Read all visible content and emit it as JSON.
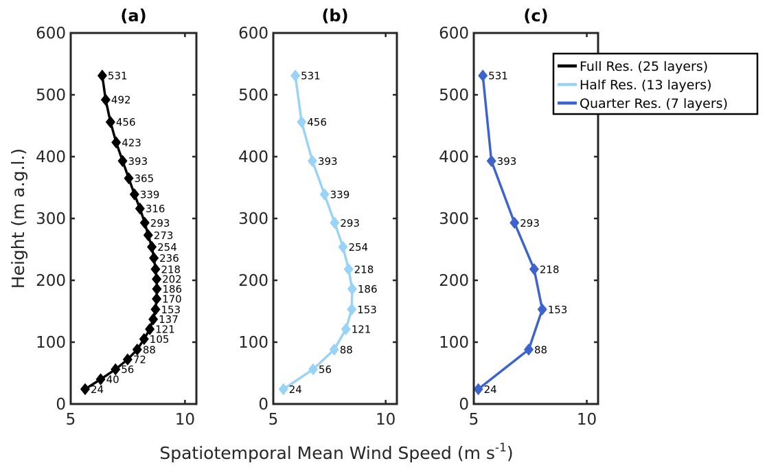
{
  "chart_data": {
    "type": "line",
    "xlabel": "Spatiotemporal Mean Wind Speed (m s",
    "xlabel_superscript": "-1",
    "xlabel_suffix": ")",
    "ylabel": "Height (m a.g.l.)",
    "xlim": [
      5,
      10.5
    ],
    "ylim": [
      0,
      600
    ],
    "x_ticks": [
      5,
      10
    ],
    "x_tick_labels": [
      "5",
      "10"
    ],
    "y_ticks": [
      0,
      100,
      200,
      300,
      400,
      500,
      600
    ],
    "y_tick_labels": [
      "0",
      "100",
      "200",
      "300",
      "400",
      "500",
      "600"
    ],
    "grid": false,
    "legend": {
      "placement": "top-right",
      "entries": [
        {
          "label": "Full Res. (25 layers)",
          "color": "#000000"
        },
        {
          "label": "Half Res. (13 layers)",
          "color": "#99d3f5"
        },
        {
          "label": "Quarter Res. (7 layers)",
          "color": "#3d64cd"
        }
      ]
    },
    "panels": [
      {
        "title": "(a)",
        "series_name": "Full Res. (25 layers)",
        "color": "#000000",
        "marker": "diamond",
        "y": [
          24,
          40,
          56,
          72,
          88,
          105,
          121,
          137,
          153,
          170,
          186,
          202,
          218,
          236,
          254,
          273,
          293,
          316,
          339,
          365,
          393,
          423,
          456,
          492,
          531
        ],
        "x": [
          5.63,
          6.31,
          6.96,
          7.49,
          7.91,
          8.21,
          8.46,
          8.61,
          8.71,
          8.76,
          8.77,
          8.76,
          8.71,
          8.64,
          8.55,
          8.39,
          8.24,
          8.03,
          7.79,
          7.54,
          7.27,
          6.99,
          6.74,
          6.53,
          6.38
        ],
        "labels": [
          "24",
          "40",
          "56",
          "72",
          "88",
          "105",
          "121",
          "137",
          "153",
          "170",
          "186",
          "202",
          "218",
          "236",
          "254",
          "273",
          "293",
          "316",
          "339",
          "365",
          "393",
          "423",
          "456",
          "492",
          "531"
        ]
      },
      {
        "title": "(b)",
        "series_name": "Half Res. (13 layers)",
        "color": "#99d3f5",
        "marker": "diamond",
        "y": [
          24,
          56,
          88,
          121,
          153,
          186,
          218,
          254,
          293,
          339,
          393,
          456,
          531
        ],
        "x": [
          5.45,
          6.77,
          7.71,
          8.23,
          8.49,
          8.51,
          8.35,
          8.1,
          7.73,
          7.28,
          6.74,
          6.26,
          5.98
        ],
        "labels": [
          "24",
          "56",
          "88",
          "121",
          "153",
          "186",
          "218",
          "254",
          "293",
          "339",
          "393",
          "456",
          "531"
        ]
      },
      {
        "title": "(c)",
        "series_name": "Quarter Res. (7 layers)",
        "color": "#3d64cd",
        "marker": "diamond",
        "y": [
          24,
          88,
          153,
          218,
          293,
          393,
          531
        ],
        "x": [
          5.2,
          7.43,
          8.03,
          7.67,
          6.8,
          5.78,
          5.4
        ],
        "labels": [
          "24",
          "88",
          "153",
          "218",
          "293",
          "393",
          "531"
        ]
      }
    ]
  }
}
